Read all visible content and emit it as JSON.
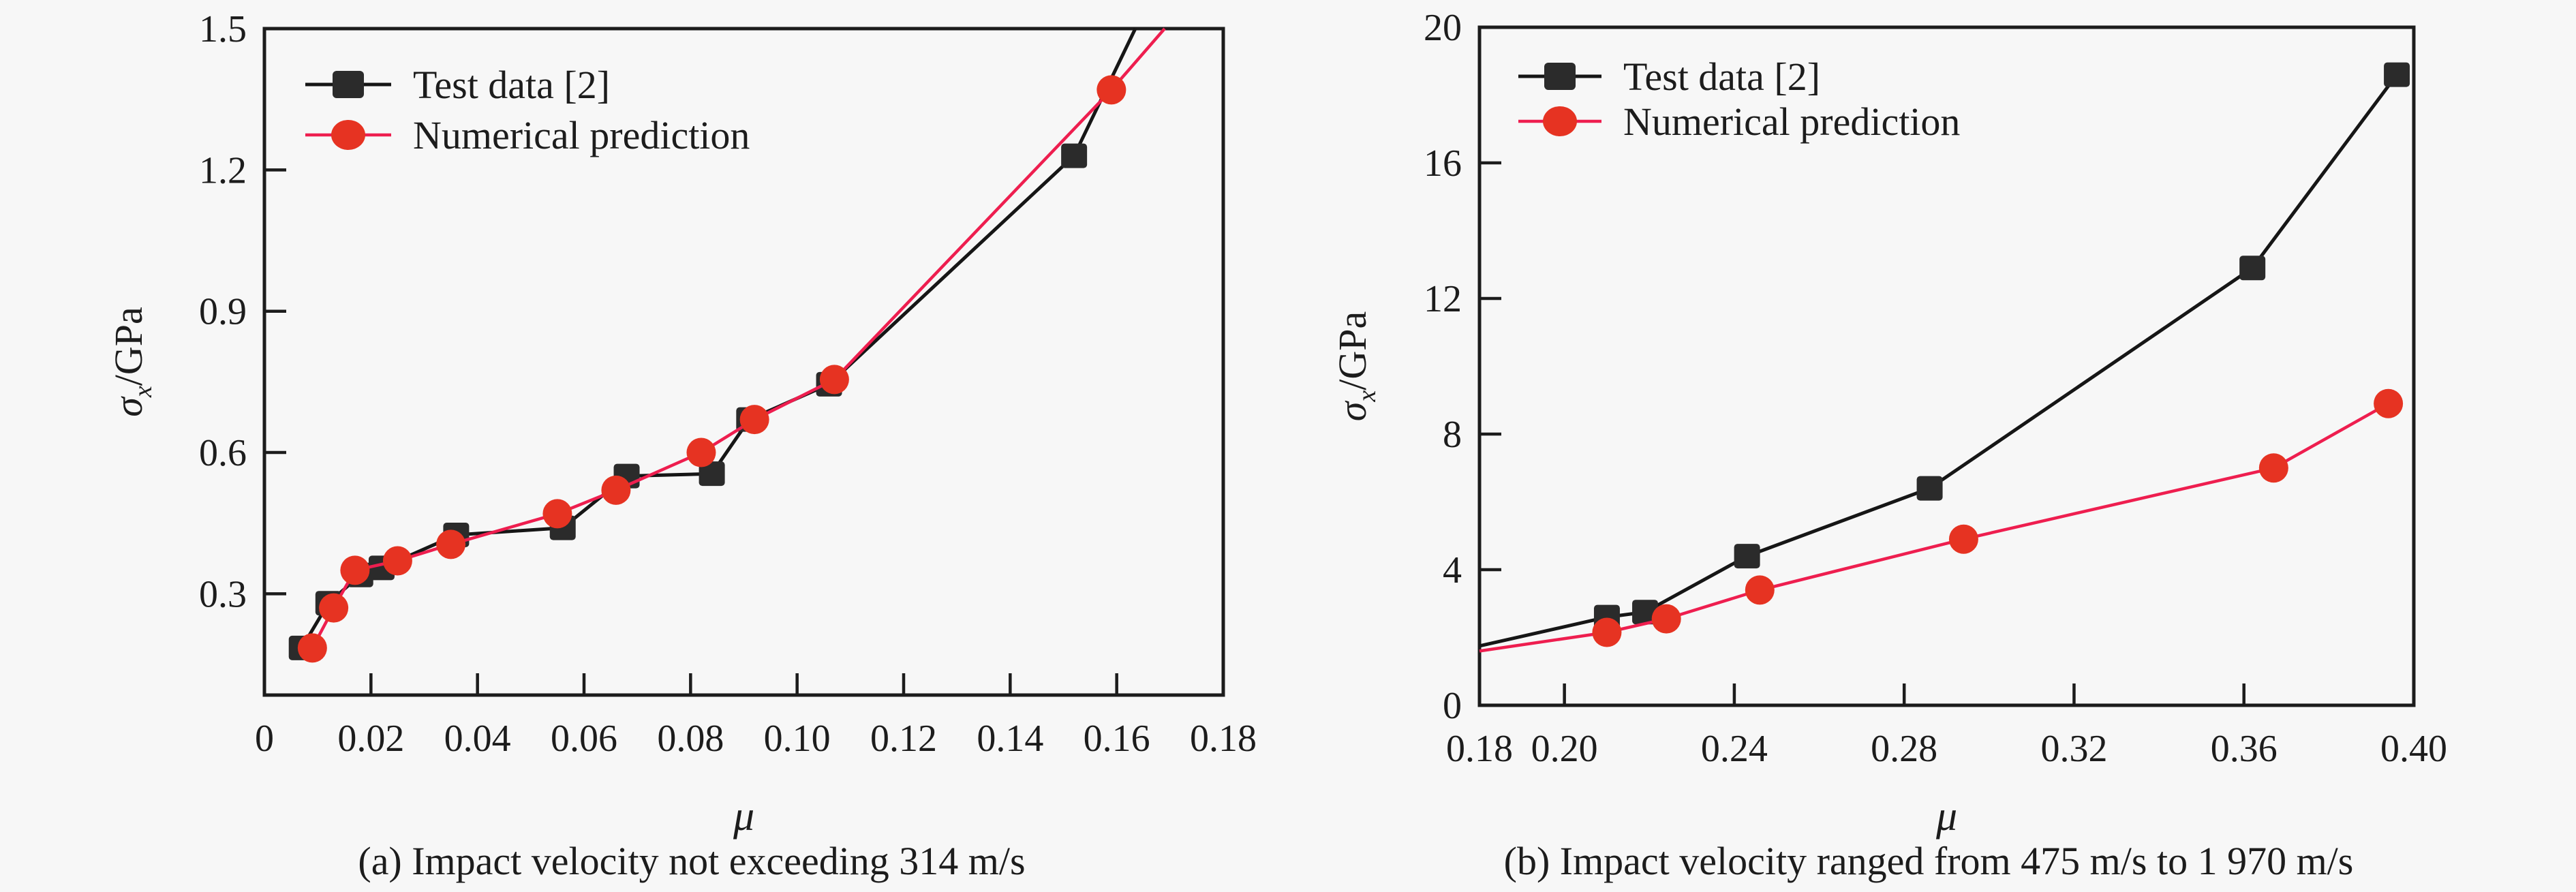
{
  "figure": {
    "background_color": "#f7f7f7",
    "text_color": "#1c1c1c",
    "axis_color": "#1c1c1c"
  },
  "chart_data": [
    {
      "id": "a",
      "type": "line",
      "caption": "(a) Impact velocity not exceeding 314 m/s",
      "xlabel": "μ",
      "ylabel": "σx/GPa",
      "ylabel_parts": {
        "symbol": "σ",
        "subscript": "x",
        "unit": "/GPa"
      },
      "xlim": [
        0,
        0.18
      ],
      "ylim": [
        0.085,
        1.5
      ],
      "grid": false,
      "legend_position": "top-left",
      "xticks": [
        {
          "v": 0,
          "label": "0",
          "mark": false
        },
        {
          "v": 0.02,
          "label": "0.02",
          "mark": true
        },
        {
          "v": 0.04,
          "label": "0.04",
          "mark": true
        },
        {
          "v": 0.06,
          "label": "0.06",
          "mark": true
        },
        {
          "v": 0.08,
          "label": "0.08",
          "mark": true
        },
        {
          "v": 0.1,
          "label": "0.10",
          "mark": true
        },
        {
          "v": 0.12,
          "label": "0.12",
          "mark": true
        },
        {
          "v": 0.14,
          "label": "0.14",
          "mark": true
        },
        {
          "v": 0.16,
          "label": "0.16",
          "mark": true
        },
        {
          "v": 0.18,
          "label": "0.18",
          "mark": false
        }
      ],
      "yticks": [
        {
          "v": 0.3,
          "label": "0.3",
          "mark": true
        },
        {
          "v": 0.6,
          "label": "0.6",
          "mark": true
        },
        {
          "v": 0.9,
          "label": "0.9",
          "mark": true
        },
        {
          "v": 1.2,
          "label": "1.2",
          "mark": true
        },
        {
          "v": 1.5,
          "label": "1.5",
          "mark": false
        }
      ],
      "series": [
        {
          "name": "Test data [2]",
          "marker": "square",
          "marker_color": "#2b2b2b",
          "line_color": "#161616",
          "points": [
            [
              0.007,
              0.185
            ],
            [
              0.012,
              0.28
            ],
            [
              0.018,
              0.34
            ],
            [
              0.022,
              0.355
            ],
            [
              0.036,
              0.425
            ],
            [
              0.056,
              0.44
            ],
            [
              0.068,
              0.55
            ],
            [
              0.084,
              0.555
            ],
            [
              0.091,
              0.67
            ],
            [
              0.106,
              0.745
            ],
            [
              0.152,
              1.23
            ]
          ],
          "line_end": [
            0.1635,
            1.5
          ]
        },
        {
          "name": "Numerical prediction",
          "marker": "circle",
          "marker_color": "#e63322",
          "line_color": "#ee1e4f",
          "points": [
            [
              0.009,
              0.185
            ],
            [
              0.013,
              0.27
            ],
            [
              0.017,
              0.35
            ],
            [
              0.025,
              0.37
            ],
            [
              0.035,
              0.405
            ],
            [
              0.055,
              0.47
            ],
            [
              0.066,
              0.52
            ],
            [
              0.082,
              0.6
            ],
            [
              0.092,
              0.67
            ],
            [
              0.107,
              0.755
            ],
            [
              0.159,
              1.37
            ]
          ],
          "line_end": [
            0.169,
            1.5
          ]
        }
      ]
    },
    {
      "id": "b",
      "type": "line",
      "caption": "(b) Impact velocity ranged from 475 m/s to 1 970 m/s",
      "xlabel": "μ",
      "ylabel": "σx/GPa",
      "ylabel_parts": {
        "symbol": "σ",
        "subscript": "x",
        "unit": "/GPa"
      },
      "xlim": [
        0.18,
        0.4
      ],
      "ylim": [
        0,
        20
      ],
      "grid": false,
      "legend_position": "top-left",
      "xticks": [
        {
          "v": 0.18,
          "label": "0.18",
          "mark": false
        },
        {
          "v": 0.2,
          "label": "0.20",
          "mark": true
        },
        {
          "v": 0.24,
          "label": "0.24",
          "mark": true
        },
        {
          "v": 0.28,
          "label": "0.28",
          "mark": true
        },
        {
          "v": 0.32,
          "label": "0.32",
          "mark": true
        },
        {
          "v": 0.36,
          "label": "0.36",
          "mark": true
        },
        {
          "v": 0.4,
          "label": "0.40",
          "mark": false
        }
      ],
      "yticks": [
        {
          "v": 0,
          "label": "0",
          "mark": false
        },
        {
          "v": 4,
          "label": "4",
          "mark": true
        },
        {
          "v": 8,
          "label": "8",
          "mark": true
        },
        {
          "v": 12,
          "label": "12",
          "mark": true
        },
        {
          "v": 16,
          "label": "16",
          "mark": true
        },
        {
          "v": 20,
          "label": "20",
          "mark": false
        }
      ],
      "series": [
        {
          "name": "Test data [2]",
          "marker": "square",
          "marker_color": "#2b2b2b",
          "line_color": "#161616",
          "points": [
            [
              0.21,
              2.6
            ],
            [
              0.219,
              2.75
            ],
            [
              0.243,
              4.4
            ],
            [
              0.286,
              6.4
            ],
            [
              0.362,
              12.9
            ],
            [
              0.396,
              18.6
            ]
          ],
          "line_start": [
            0.18,
            1.75
          ]
        },
        {
          "name": "Numerical prediction",
          "marker": "circle",
          "marker_color": "#e63322",
          "line_color": "#ee1e4f",
          "points": [
            [
              0.21,
              2.15
            ],
            [
              0.224,
              2.55
            ],
            [
              0.246,
              3.4
            ],
            [
              0.294,
              4.9
            ],
            [
              0.367,
              7.0
            ],
            [
              0.394,
              8.9
            ]
          ],
          "line_start": [
            0.18,
            1.6
          ]
        }
      ]
    }
  ]
}
